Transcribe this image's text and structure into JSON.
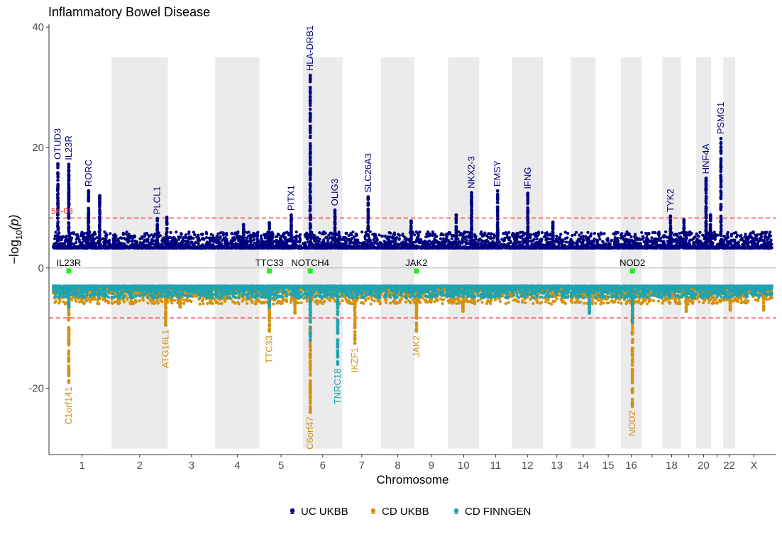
{
  "chart_data": {
    "type": "scatter",
    "subtype": "miami-plot",
    "title": "Inflammatory Bowel Disease",
    "xlabel": "Chromosome",
    "ylabel": "-log10(p)",
    "ylim": [
      -31,
      40.5
    ],
    "yticks": [
      -20,
      0,
      20,
      40
    ],
    "xtick_labels": [
      "1",
      "2",
      "3",
      "4",
      "5",
      "6",
      "7",
      "8",
      "9",
      "10",
      "11",
      "12",
      "13",
      "14",
      "15",
      "16",
      "18",
      "20",
      "22",
      "X"
    ],
    "chromosomes": [
      {
        "n": "1",
        "len": 248,
        "shade": false
      },
      {
        "n": "2",
        "len": 242,
        "shade": true
      },
      {
        "n": "3",
        "len": 198,
        "shade": false
      },
      {
        "n": "4",
        "len": 190,
        "shade": true
      },
      {
        "n": "5",
        "len": 181,
        "shade": false
      },
      {
        "n": "6",
        "len": 171,
        "shade": true
      },
      {
        "n": "7",
        "len": 159,
        "shade": false
      },
      {
        "n": "8",
        "len": 145,
        "shade": true
      },
      {
        "n": "9",
        "len": 138,
        "shade": false
      },
      {
        "n": "10",
        "len": 134,
        "shade": true
      },
      {
        "n": "11",
        "len": 135,
        "shade": false
      },
      {
        "n": "12",
        "len": 133,
        "shade": true
      },
      {
        "n": "13",
        "len": 114,
        "shade": false
      },
      {
        "n": "14",
        "len": 107,
        "shade": true
      },
      {
        "n": "15",
        "len": 102,
        "shade": false
      },
      {
        "n": "16",
        "len": 90,
        "shade": true
      },
      {
        "n": "17",
        "len": 83,
        "shade": false
      },
      {
        "n": "18",
        "len": 80,
        "shade": true
      },
      {
        "n": "19",
        "len": 59,
        "shade": false
      },
      {
        "n": "20",
        "len": 64,
        "shade": true
      },
      {
        "n": "21",
        "len": 47,
        "shade": false
      },
      {
        "n": "22",
        "len": 51,
        "shade": true
      },
      {
        "n": "X",
        "len": 156,
        "shade": false
      }
    ],
    "threshold_label": "5e-08",
    "threshold_value": 8.3,
    "grid": false,
    "legend_position": "bottom",
    "series": [
      {
        "name": "UC UKBB",
        "color": "#00007F",
        "direction": "up",
        "baseline": 3.3,
        "noise_max": 6,
        "peaks": [
          {
            "chr": "1",
            "pos": 20,
            "p": 17.3,
            "label": "OTUD3"
          },
          {
            "chr": "1",
            "pos": 67,
            "p": 17.2,
            "label": "IL23R"
          },
          {
            "chr": "1",
            "pos": 152,
            "p": 12.8,
            "label": "RORC"
          },
          {
            "chr": "1",
            "pos": 200,
            "p": 12.0
          },
          {
            "chr": "2",
            "pos": 197,
            "p": 8.2,
            "label": "PLCL1"
          },
          {
            "chr": "2",
            "pos": 238,
            "p": 8.4
          },
          {
            "chr": "4",
            "pos": 122,
            "p": 7.2
          },
          {
            "chr": "5",
            "pos": 40,
            "p": 7.5
          },
          {
            "chr": "5",
            "pos": 134,
            "p": 8.8,
            "label": "PITX1"
          },
          {
            "chr": "6",
            "pos": 32,
            "p": 32.0,
            "label": "HLA-DRB1"
          },
          {
            "chr": "6",
            "pos": 138,
            "p": 9.6,
            "label": "OLIG3"
          },
          {
            "chr": "7",
            "pos": 107,
            "p": 11.8,
            "label": "SLC26A3"
          },
          {
            "chr": "8",
            "pos": 130,
            "p": 7.8
          },
          {
            "chr": "10",
            "pos": 35,
            "p": 8.8
          },
          {
            "chr": "10",
            "pos": 101,
            "p": 12.5,
            "label": "NKX2-3"
          },
          {
            "chr": "11",
            "pos": 76,
            "p": 12.8,
            "label": "EMSY"
          },
          {
            "chr": "12",
            "pos": 68,
            "p": 12.4,
            "label": "IFNG"
          },
          {
            "chr": "13",
            "pos": 40,
            "p": 7.6
          },
          {
            "chr": "18",
            "pos": 35,
            "p": 8.6,
            "label": "TYK2"
          },
          {
            "chr": "19",
            "pos": 10,
            "p": 8.0
          },
          {
            "chr": "20",
            "pos": 43,
            "p": 14.9,
            "label": "HNF4A"
          },
          {
            "chr": "20",
            "pos": 62,
            "p": 8.8
          },
          {
            "chr": "21",
            "pos": 40,
            "p": 21.5,
            "label": "PSMG1"
          }
        ]
      },
      {
        "name": "CD UKBB",
        "color": "#D4920F",
        "direction": "down",
        "baseline": 3.3,
        "noise_max": 6,
        "peaks": [
          {
            "chr": "1",
            "pos": 67,
            "p": 19.0,
            "label": "C1orf141"
          },
          {
            "chr": "2",
            "pos": 233,
            "p": 9.5,
            "label": "ATG16L1"
          },
          {
            "chr": "3",
            "pos": 50,
            "p": 6.5
          },
          {
            "chr": "5",
            "pos": 40,
            "p": 10.5,
            "label": "TTC33"
          },
          {
            "chr": "5",
            "pos": 150,
            "p": 7.5
          },
          {
            "chr": "6",
            "pos": 32,
            "p": 24.0,
            "label": "C6orf47"
          },
          {
            "chr": "7",
            "pos": 50,
            "p": 12.5,
            "label": "IKZF1"
          },
          {
            "chr": "9",
            "pos": 5,
            "p": 10.5,
            "label": "JAK2"
          },
          {
            "chr": "10",
            "pos": 64,
            "p": 7.2
          },
          {
            "chr": "16",
            "pos": 50,
            "p": 23.0,
            "label": "NOD2"
          },
          {
            "chr": "19",
            "pos": 20,
            "p": 7.2
          },
          {
            "chr": "22",
            "pos": 30,
            "p": 7.0
          },
          {
            "chr": "X",
            "pos": 120,
            "p": 7.0
          }
        ]
      },
      {
        "name": "CD FINNGEN",
        "color": "#1FA3B0",
        "direction": "down",
        "baseline": 3.0,
        "noise_max": 5,
        "peaks": [
          {
            "chr": "1",
            "pos": 67,
            "p": 6.5
          },
          {
            "chr": "5",
            "pos": 40,
            "p": 6.5
          },
          {
            "chr": "6",
            "pos": 32,
            "p": 12.0
          },
          {
            "chr": "6",
            "pos": 150,
            "p": 16.0,
            "label": "TNRC18"
          },
          {
            "chr": "14",
            "pos": 80,
            "p": 7.5
          },
          {
            "chr": "16",
            "pos": 50,
            "p": 9.0
          }
        ]
      }
    ],
    "reference_markers": [
      {
        "chr": "1",
        "pos": 67,
        "label": "IL23R"
      },
      {
        "chr": "5",
        "pos": 40,
        "label": "TTC33"
      },
      {
        "chr": "6",
        "pos": 32,
        "label": "NOTCH4"
      },
      {
        "chr": "9",
        "pos": 5,
        "label": "JAK2"
      },
      {
        "chr": "16",
        "pos": 50,
        "label": "NOD2"
      }
    ]
  },
  "legend": {
    "items": [
      {
        "label": "UC UKBB",
        "color": "#00007F"
      },
      {
        "label": "CD UKBB",
        "color": "#D4920F"
      },
      {
        "label": "CD FINNGEN",
        "color": "#1FA3B0"
      }
    ]
  }
}
